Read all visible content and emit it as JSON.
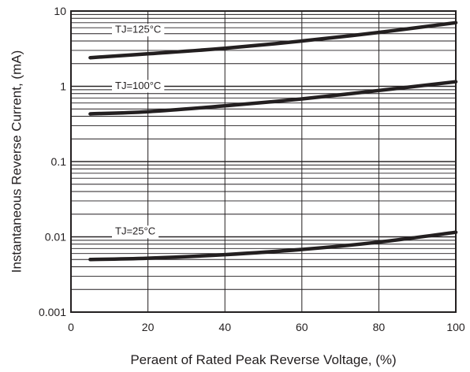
{
  "chart_data": {
    "type": "line",
    "title": "",
    "xlabel": "Peraent of Rated Peak Reverse Voltage, (%)",
    "ylabel": "Instantaneous Reverse Current, (mA)",
    "xlim": [
      0,
      100
    ],
    "ylim": [
      0.001,
      10
    ],
    "yscale": "log",
    "grid": true,
    "x_ticks": [
      "0",
      "20",
      "40",
      "60",
      "80",
      "100"
    ],
    "y_ticks": [
      "0.001",
      "0.01",
      "0.1",
      "1",
      "10"
    ],
    "colors": {
      "line": "#231f20",
      "grid": "#231f20",
      "background": "#ffffff"
    },
    "series": [
      {
        "name": "TJ=125°C",
        "x": [
          5,
          20,
          40,
          60,
          80,
          100
        ],
        "y": [
          2.4,
          2.7,
          3.2,
          4.0,
          5.2,
          7.0
        ]
      },
      {
        "name": "TJ=100°C",
        "x": [
          5,
          20,
          40,
          60,
          80,
          100
        ],
        "y": [
          0.43,
          0.46,
          0.55,
          0.68,
          0.88,
          1.15
        ]
      },
      {
        "name": "TJ=25°C",
        "x": [
          5,
          20,
          40,
          60,
          80,
          100
        ],
        "y": [
          0.005,
          0.0052,
          0.0058,
          0.0068,
          0.0085,
          0.0115
        ]
      }
    ]
  }
}
